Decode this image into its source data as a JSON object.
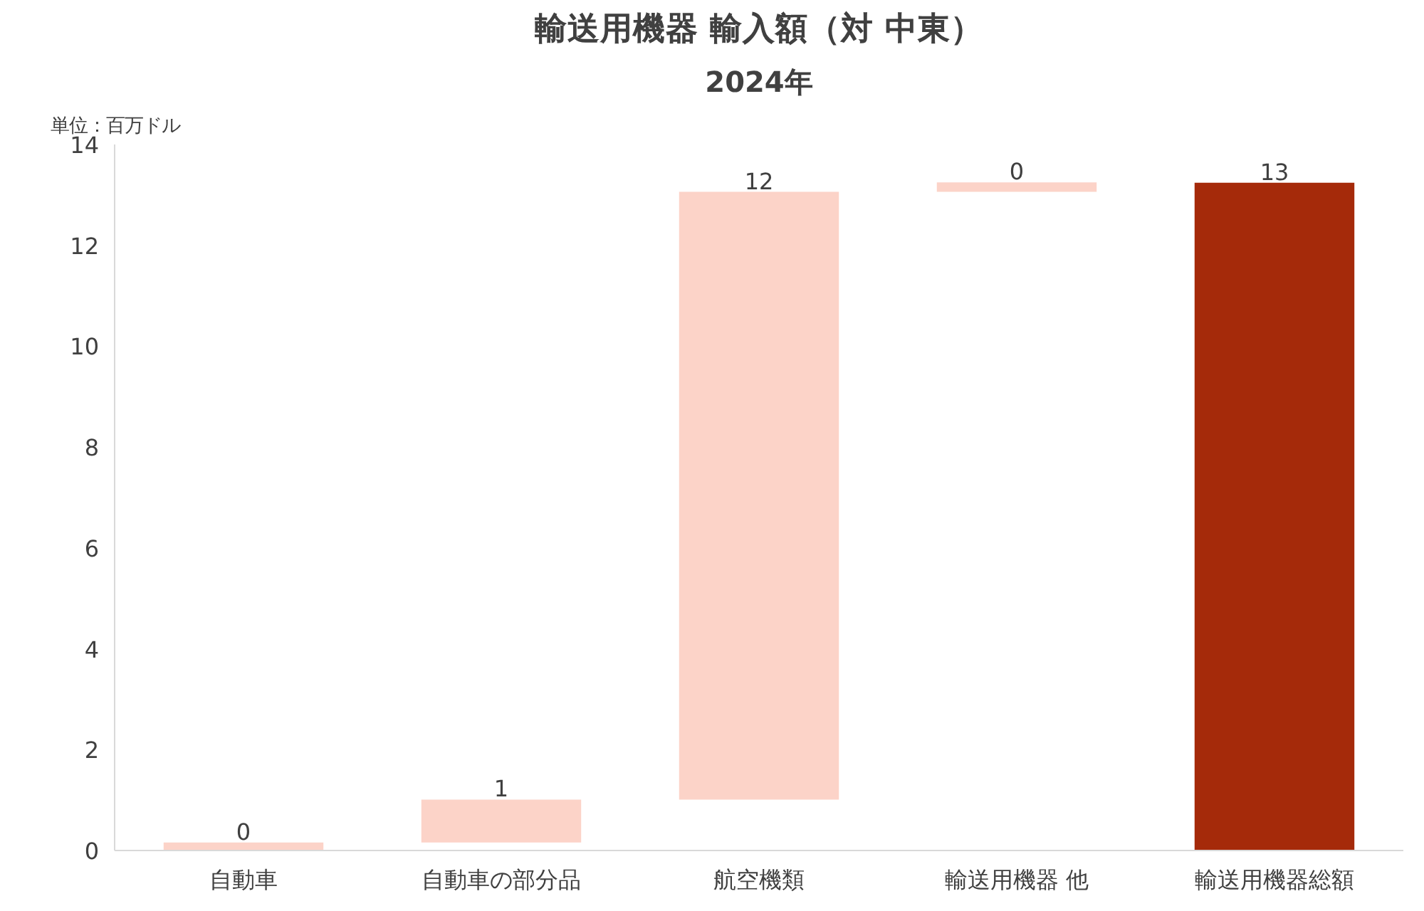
{
  "chart_data": {
    "type": "bar",
    "title": "輸送用機器 輸入額（対 中東）",
    "subtitle": "2024年",
    "annotations": [
      "単位：百万ドル"
    ],
    "categories": [
      "自動車",
      "自動車の部分品",
      "航空機類",
      "輸送用機器 他",
      "輸送用機器総額"
    ],
    "values": [
      0.16,
      0.85,
      12.05,
      0.19,
      13.24
    ],
    "base": [
      0,
      0.16,
      1.01,
      13.06,
      0
    ],
    "colors": [
      "#fcd3c8",
      "#fcd3c8",
      "#fcd3c8",
      "#fcd3c8",
      "#a52a0a"
    ],
    "value_labels": [
      "0",
      "1",
      "12",
      "0",
      "13"
    ],
    "ylim": [
      0,
      14
    ],
    "yticks": [
      0,
      2,
      4,
      6,
      8,
      10,
      12,
      14
    ],
    "grid": false
  }
}
